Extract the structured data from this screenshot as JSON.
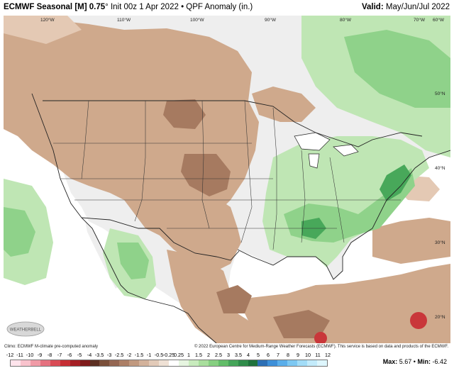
{
  "header": {
    "model": "ECMWF Seasonal [M] 0.75",
    "degree": "°",
    "init": "Init 00z 1 Apr 2022",
    "sep": "•",
    "product": "QPF Anomaly (in.)",
    "valid_label": "Valid:",
    "valid_value": "May/Jun/Jul 2022"
  },
  "map": {
    "lon_labels": [
      "120°W",
      "110°W",
      "100°W",
      "90°W",
      "80°W",
      "70°W",
      "60°W"
    ],
    "lat_labels": [
      "50°N",
      "40°N",
      "30°N",
      "20°N"
    ],
    "colors": {
      "ocean": "#ffffff",
      "dry_light": "#e4c9b4",
      "dry": "#cfa98c",
      "dry_dark": "#a67a60",
      "wet_light": "#bfe6b4",
      "wet": "#8fd28a",
      "wet_dark": "#48a85a",
      "very_dry": "#c9373a",
      "border": "#222222"
    }
  },
  "logo_text": "WEATHERBELL",
  "credits": {
    "left": "Climo: ECMWF M-climate pre-computed anomaly",
    "right": "© 2022 European Centre for Medium-Range Weather Forecasts (ECMWF). This service is based on data and products of the ECMWF."
  },
  "legend": {
    "labels": [
      "-12",
      "-11",
      "-10",
      "-9",
      "-8",
      "-7",
      "-6",
      "-5",
      "-4",
      "-3.5",
      "-3",
      "-2.5",
      "-2",
      "-1.5",
      "-1",
      "-0.5",
      "-0.25",
      "0.25",
      "1",
      "1.5",
      "2",
      "2.5",
      "3",
      "3.5",
      "4",
      "5",
      "6",
      "7",
      "8",
      "9",
      "10",
      "11",
      "12"
    ],
    "colors": [
      "#ffe4ec",
      "#f9c3cd",
      "#f09aa6",
      "#e5717f",
      "#d94b55",
      "#c62e34",
      "#a51f24",
      "#7f1a1a",
      "#5c2f22",
      "#7a4f3a",
      "#946652",
      "#ac7f66",
      "#c1997f",
      "#d3b29b",
      "#e2cab8",
      "#efe1d5",
      "#ffffff",
      "#e6f5e0",
      "#c8ebbd",
      "#a8de9c",
      "#86cf80",
      "#62bd68",
      "#45a559",
      "#2f8c4a",
      "#1f723c",
      "#2d6fb5",
      "#3d8fd8",
      "#5aaeea",
      "#7dc8f2",
      "#a2dcf7",
      "#c3ebfb",
      "#def6fd"
    ]
  },
  "maxmin": {
    "max_label": "Max:",
    "max_value": "5.67",
    "sep": "•",
    "min_label": "Min:",
    "min_value": "-6.42"
  }
}
